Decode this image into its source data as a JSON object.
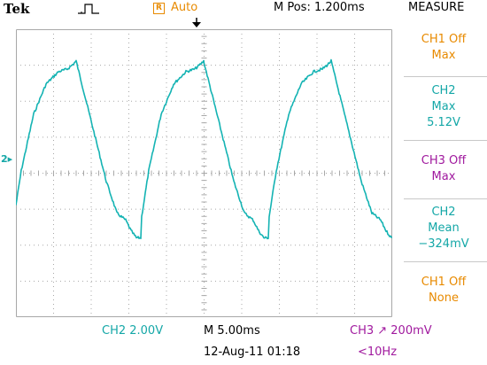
{
  "header": {
    "brand": "Tek",
    "trigger_status_icon": "trigger-pulse-icon",
    "acquisition": {
      "icon_letter": "R",
      "label": "Auto"
    },
    "horizontal_position": "M Pos: 1.200ms",
    "menu_title": "MEASURE"
  },
  "colors": {
    "ch1": "#e88a00",
    "ch2": "#14a7a7",
    "ch3": "#a0199e",
    "grid": "#a8a8a8",
    "waveform": "#14b3b3"
  },
  "waveform": {
    "channel_marker": "2▸",
    "ch2_peak_divs_above_ground": 2.56,
    "ch2_trough_divs_below_ground": 2.35
  },
  "measurements": [
    {
      "lines": [
        "CH1 Off",
        "Max"
      ],
      "color": "#e88a00"
    },
    {
      "lines": [
        "CH2",
        "Max",
        "5.12V"
      ],
      "color": "#14a7a7"
    },
    {
      "lines": [
        "CH3 Off",
        "Max"
      ],
      "color": "#a0199e"
    },
    {
      "lines": [
        "CH2",
        "Mean",
        "−324mV"
      ],
      "color": "#14a7a7"
    },
    {
      "lines": [
        "CH1 Off",
        "None"
      ],
      "color": "#e88a00"
    }
  ],
  "footer": {
    "ch2_scale": "CH2  2.00V",
    "timebase": "M 5.00ms",
    "datetime": "12-Aug-11 01:18",
    "trigger_setting": "CH3 ↗ 200mV",
    "trigger_freq": "<10Hz"
  }
}
